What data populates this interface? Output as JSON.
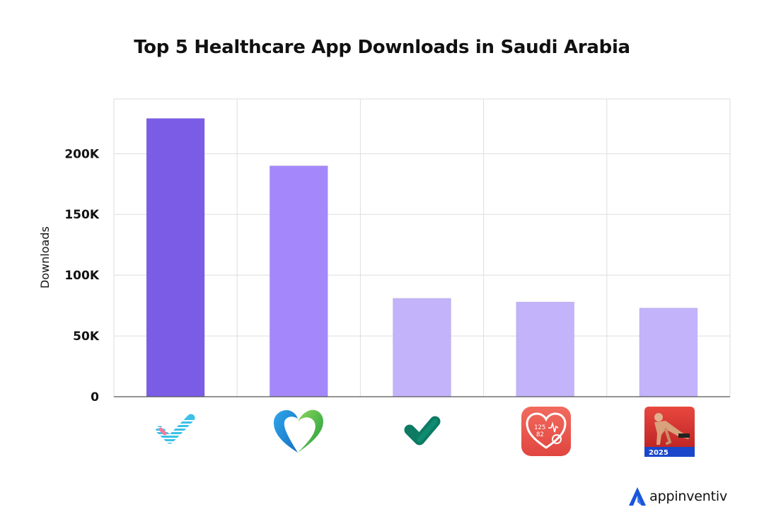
{
  "chart_data": {
    "type": "bar",
    "title": "Top 5 Healthcare App Downloads in Saudi Arabia",
    "xlabel": "",
    "ylabel": "Downloads",
    "ylim": [
      0,
      245000
    ],
    "yticks": [
      0,
      50000,
      100000,
      150000,
      200000
    ],
    "ytick_labels": [
      "0",
      "50K",
      "100K",
      "150K",
      "200K"
    ],
    "categories": [
      "app-1-checkmark-stripes",
      "app-2-heart",
      "app-3-green-check",
      "app-4-blood-pressure",
      "app-5-pushup-2025"
    ],
    "values": [
      229000,
      190000,
      81000,
      78000,
      73000
    ],
    "colors": [
      "#7b5ce6",
      "#a488fb",
      "#c2b3fb",
      "#c2b3fb",
      "#c2b3fb"
    ],
    "grid": true,
    "x_axis_icons": [
      "checkmark-stripes-icon",
      "heart-icon",
      "green-check-icon",
      "blood-pressure-icon",
      "pushup-fitness-icon"
    ],
    "icon_badge_text": "2025"
  },
  "brand": {
    "name": "appinventiv",
    "logo_color": "#1a56db"
  }
}
